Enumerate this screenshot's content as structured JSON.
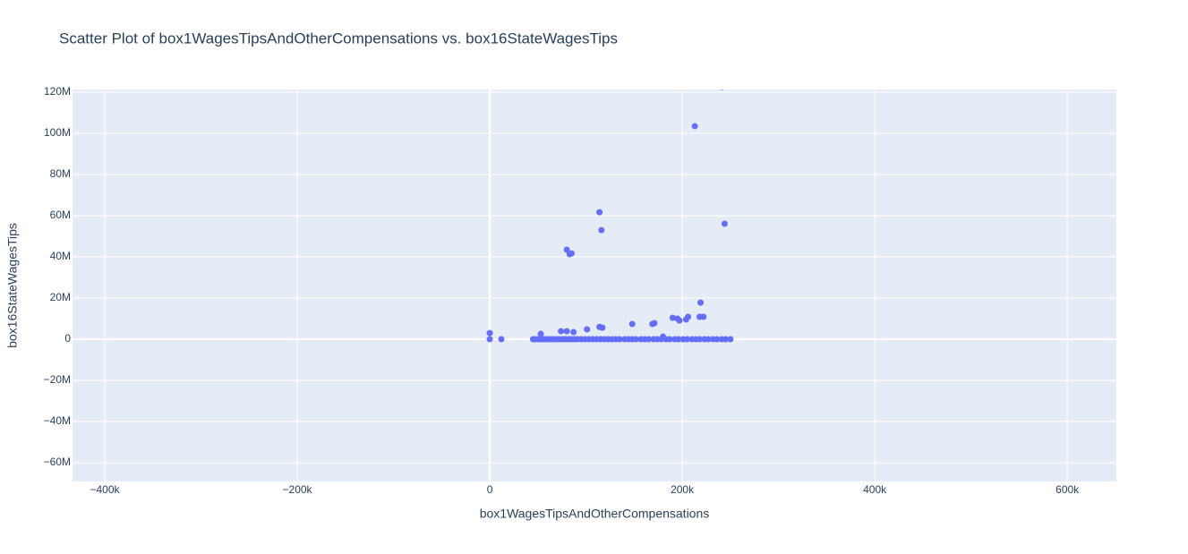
{
  "chart_data": {
    "type": "scatter",
    "title": "Scatter Plot of box1WagesTipsAndOtherCompensations vs. box16StateWagesTips",
    "x_label": "box1WagesTipsAndOtherCompensations",
    "y_label": "box16StateWagesTips",
    "color": "#636efa",
    "grid": true,
    "x": [
      0,
      0,
      12000,
      45000,
      47000,
      50000,
      53000,
      56000,
      58000,
      61000,
      64000,
      67000,
      70000,
      73000,
      76000,
      79000,
      82000,
      85000,
      88000,
      91000,
      95000,
      99000,
      103000,
      107000,
      111000,
      115000,
      119000,
      123000,
      127000,
      131000,
      135000,
      140000,
      144000,
      148000,
      152000,
      157000,
      161000,
      165000,
      170000,
      174000,
      178000,
      183000,
      187000,
      192000,
      196000,
      201000,
      205000,
      210000,
      214000,
      218000,
      223000,
      227000,
      232000,
      236000,
      241000,
      245000,
      250000,
      53000,
      74000,
      80000,
      87000,
      101000,
      114000,
      116000,
      80000,
      83000,
      85000,
      114000,
      117000,
      148000,
      169000,
      171000,
      180000,
      190000,
      195000,
      197000,
      204000,
      206000,
      213000,
      241000,
      219000,
      218000,
      222000,
      244000
    ],
    "values": [
      3000000,
      0,
      0,
      0,
      0,
      0,
      0,
      0,
      0,
      0,
      0,
      0,
      0,
      0,
      0,
      0,
      0,
      0,
      0,
      0,
      0,
      0,
      0,
      0,
      0,
      0,
      0,
      0,
      0,
      0,
      0,
      0,
      0,
      0,
      0,
      0,
      0,
      0,
      0,
      0,
      0,
      0,
      0,
      0,
      0,
      0,
      0,
      0,
      0,
      0,
      0,
      0,
      0,
      0,
      0,
      0,
      0,
      2600000,
      3900000,
      3900000,
      3500000,
      4800000,
      61700000,
      53000000,
      43500000,
      41300000,
      41700000,
      6000000,
      5600000,
      7400000,
      7400000,
      7800000,
      1300000,
      10400000,
      10000000,
      9100000,
      9600000,
      10900000,
      103500000,
      122600000,
      17800000,
      10900000,
      10900000,
      56100000
    ],
    "xlim": [
      -433500,
      651000
    ],
    "ylim": [
      -69100000,
      121300000
    ],
    "xticks": [
      {
        "value": -400000,
        "label": "−400k"
      },
      {
        "value": -200000,
        "label": "−200k"
      },
      0,
      {
        "value": 200000,
        "label": "200k"
      },
      {
        "value": 400000,
        "label": "400k"
      },
      {
        "value": 600000,
        "label": "600k"
      }
    ],
    "yticks": [
      {
        "value": -60000000,
        "label": "−60M"
      },
      {
        "value": -40000000,
        "label": "−40M"
      },
      {
        "value": -20000000,
        "label": "−20M"
      },
      0,
      {
        "value": 20000000,
        "label": "20M"
      },
      {
        "value": 40000000,
        "label": "40M"
      },
      {
        "value": 60000000,
        "label": "60M"
      },
      {
        "value": 80000000,
        "label": "80M"
      },
      {
        "value": 100000000,
        "label": "100M"
      },
      {
        "value": 120000000,
        "label": "120M"
      }
    ]
  }
}
